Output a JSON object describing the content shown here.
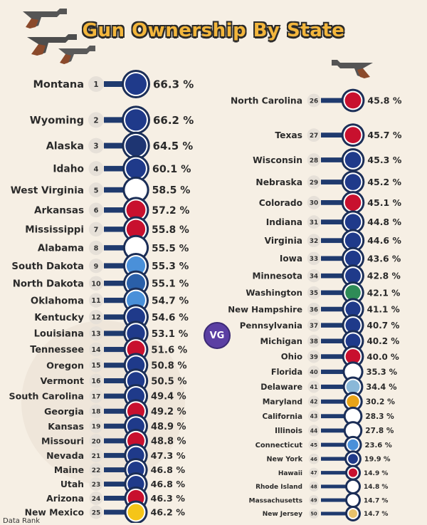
{
  "title": "Gun Ownership By State",
  "brand": "VG",
  "footer": "Data Rank",
  "colors": {
    "title_fill": "#f3b63c",
    "outline": "#2a2a2a",
    "bar": "#1f3a6e",
    "rank_bg": "#e6e0d8",
    "badge": "#5b3fa3",
    "background": "#f6efe4"
  },
  "chart_data": {
    "type": "bar",
    "title": "Gun Ownership By State",
    "unit": "%",
    "series": [
      {
        "values": [
          66.3,
          66.2,
          64.5,
          60.1,
          58.5,
          57.2,
          55.8,
          55.5,
          55.3,
          55.1,
          54.7,
          54.6,
          53.1,
          51.6,
          50.8,
          50.5,
          49.4,
          49.2,
          48.9,
          48.8,
          47.3,
          46.8,
          46.8,
          46.3,
          46.2,
          45.8,
          45.7,
          45.3,
          45.2,
          45.1,
          44.8,
          44.6,
          43.6,
          42.8,
          42.1,
          41.1,
          40.7,
          40.2,
          40.0,
          35.3,
          34.4,
          30.2,
          28.3,
          27.8,
          23.6,
          19.9,
          14.9,
          14.8,
          14.7,
          14.7
        ]
      }
    ],
    "categories": [
      "Montana",
      "Wyoming",
      "Alaska",
      "Idaho",
      "West Virginia",
      "Arkansas",
      "Mississippi",
      "Alabama",
      "South Dakota",
      "North Dakota",
      "Oklahoma",
      "Kentucky",
      "Louisiana",
      "Tennessee",
      "Oregon",
      "Vermont",
      "South Carolina",
      "Georgia",
      "Kansas",
      "Missouri",
      "Nevada",
      "Maine",
      "Utah",
      "Arizona",
      "New Mexico",
      "North Carolina",
      "Texas",
      "Wisconsin",
      "Nebraska",
      "Colorado",
      "Indiana",
      "Virginia",
      "Iowa",
      "Minnesota",
      "Washington",
      "New Hampshire",
      "Pennsylvania",
      "Michigan",
      "Ohio",
      "Florida",
      "Delaware",
      "Maryland",
      "California",
      "Illinois",
      "Connecticut",
      "New York",
      "Hawaii",
      "Rhode Island",
      "Massachusetts",
      "New Jersey"
    ],
    "ranks": [
      "1",
      "2",
      "3",
      "4",
      "5",
      "6",
      "7",
      "8",
      "9",
      "10",
      "11",
      "12",
      "13",
      "14",
      "15",
      "16",
      "17",
      "18",
      "19",
      "20",
      "21",
      "22",
      "23",
      "24",
      "25",
      "26",
      "27",
      "28",
      "29",
      "30",
      "31",
      "32",
      "33",
      "34",
      "35",
      "36",
      "37",
      "38",
      "39",
      "40",
      "41",
      "42",
      "43",
      "44",
      "45",
      "46",
      "47",
      "48",
      "49",
      "50"
    ],
    "value_labels": [
      "66.3 %",
      "66.2 %",
      "64.5 %",
      "60.1 %",
      "58.5 %",
      "57.2 %",
      "55.8 %",
      "55.5 %",
      "55.3 %",
      "55.1 %",
      "54.7 %",
      "54.6 %",
      "53.1 %",
      "51.6 %",
      "50.8 %",
      "50.5 %",
      "49.4 %",
      "49.2 %",
      "48.9 %",
      "48.8 %",
      "47.3 %",
      "46.8 %",
      "46.8 %",
      "46.3 %",
      "46.2 %",
      "45.8 %",
      "45.7 %",
      "45.3 %",
      "45.2 %",
      "45.1 %",
      "44.8 %",
      "44.6 %",
      "43.6 %",
      "42.8 %",
      "42.1 %",
      "41.1 %",
      "40.7 %",
      "40.2 %",
      "40.0 %",
      "35.3 %",
      "34.4 %",
      "30.2 %",
      "28.3 %",
      "27.8 %",
      "23.6 %",
      "19.9 %",
      "14.9 %",
      "14.8 %",
      "14.7 %",
      "14.7 %"
    ],
    "flag_colors": [
      "#1f3a8a",
      "#1f3a8a",
      "#1e3572",
      "#1f3a8a",
      "#ffffff",
      "#c8102e",
      "#c8102e",
      "#ffffff",
      "#4a90d9",
      "#2a5fa8",
      "#4a90d9",
      "#1f3a8a",
      "#1f3a8a",
      "#c8102e",
      "#1f3a8a",
      "#1f3a8a",
      "#1f3a8a",
      "#c8102e",
      "#1f3a8a",
      "#c8102e",
      "#1f3a8a",
      "#1f3a8a",
      "#1f3a8a",
      "#c8102e",
      "#f5c518",
      "#c8102e",
      "#c8102e",
      "#1f3a8a",
      "#1f3a8a",
      "#c8102e",
      "#1f3a8a",
      "#1f3a8a",
      "#1f3a8a",
      "#1f3a8a",
      "#2e8b57",
      "#1f3a8a",
      "#1f3a8a",
      "#1f3a8a",
      "#c8102e",
      "#ffffff",
      "#8ab8d8",
      "#e8a317",
      "#ffffff",
      "#ffffff",
      "#4a90d9",
      "#1f3a8a",
      "#c8102e",
      "#ffffff",
      "#ffffff",
      "#e8c26a"
    ]
  }
}
